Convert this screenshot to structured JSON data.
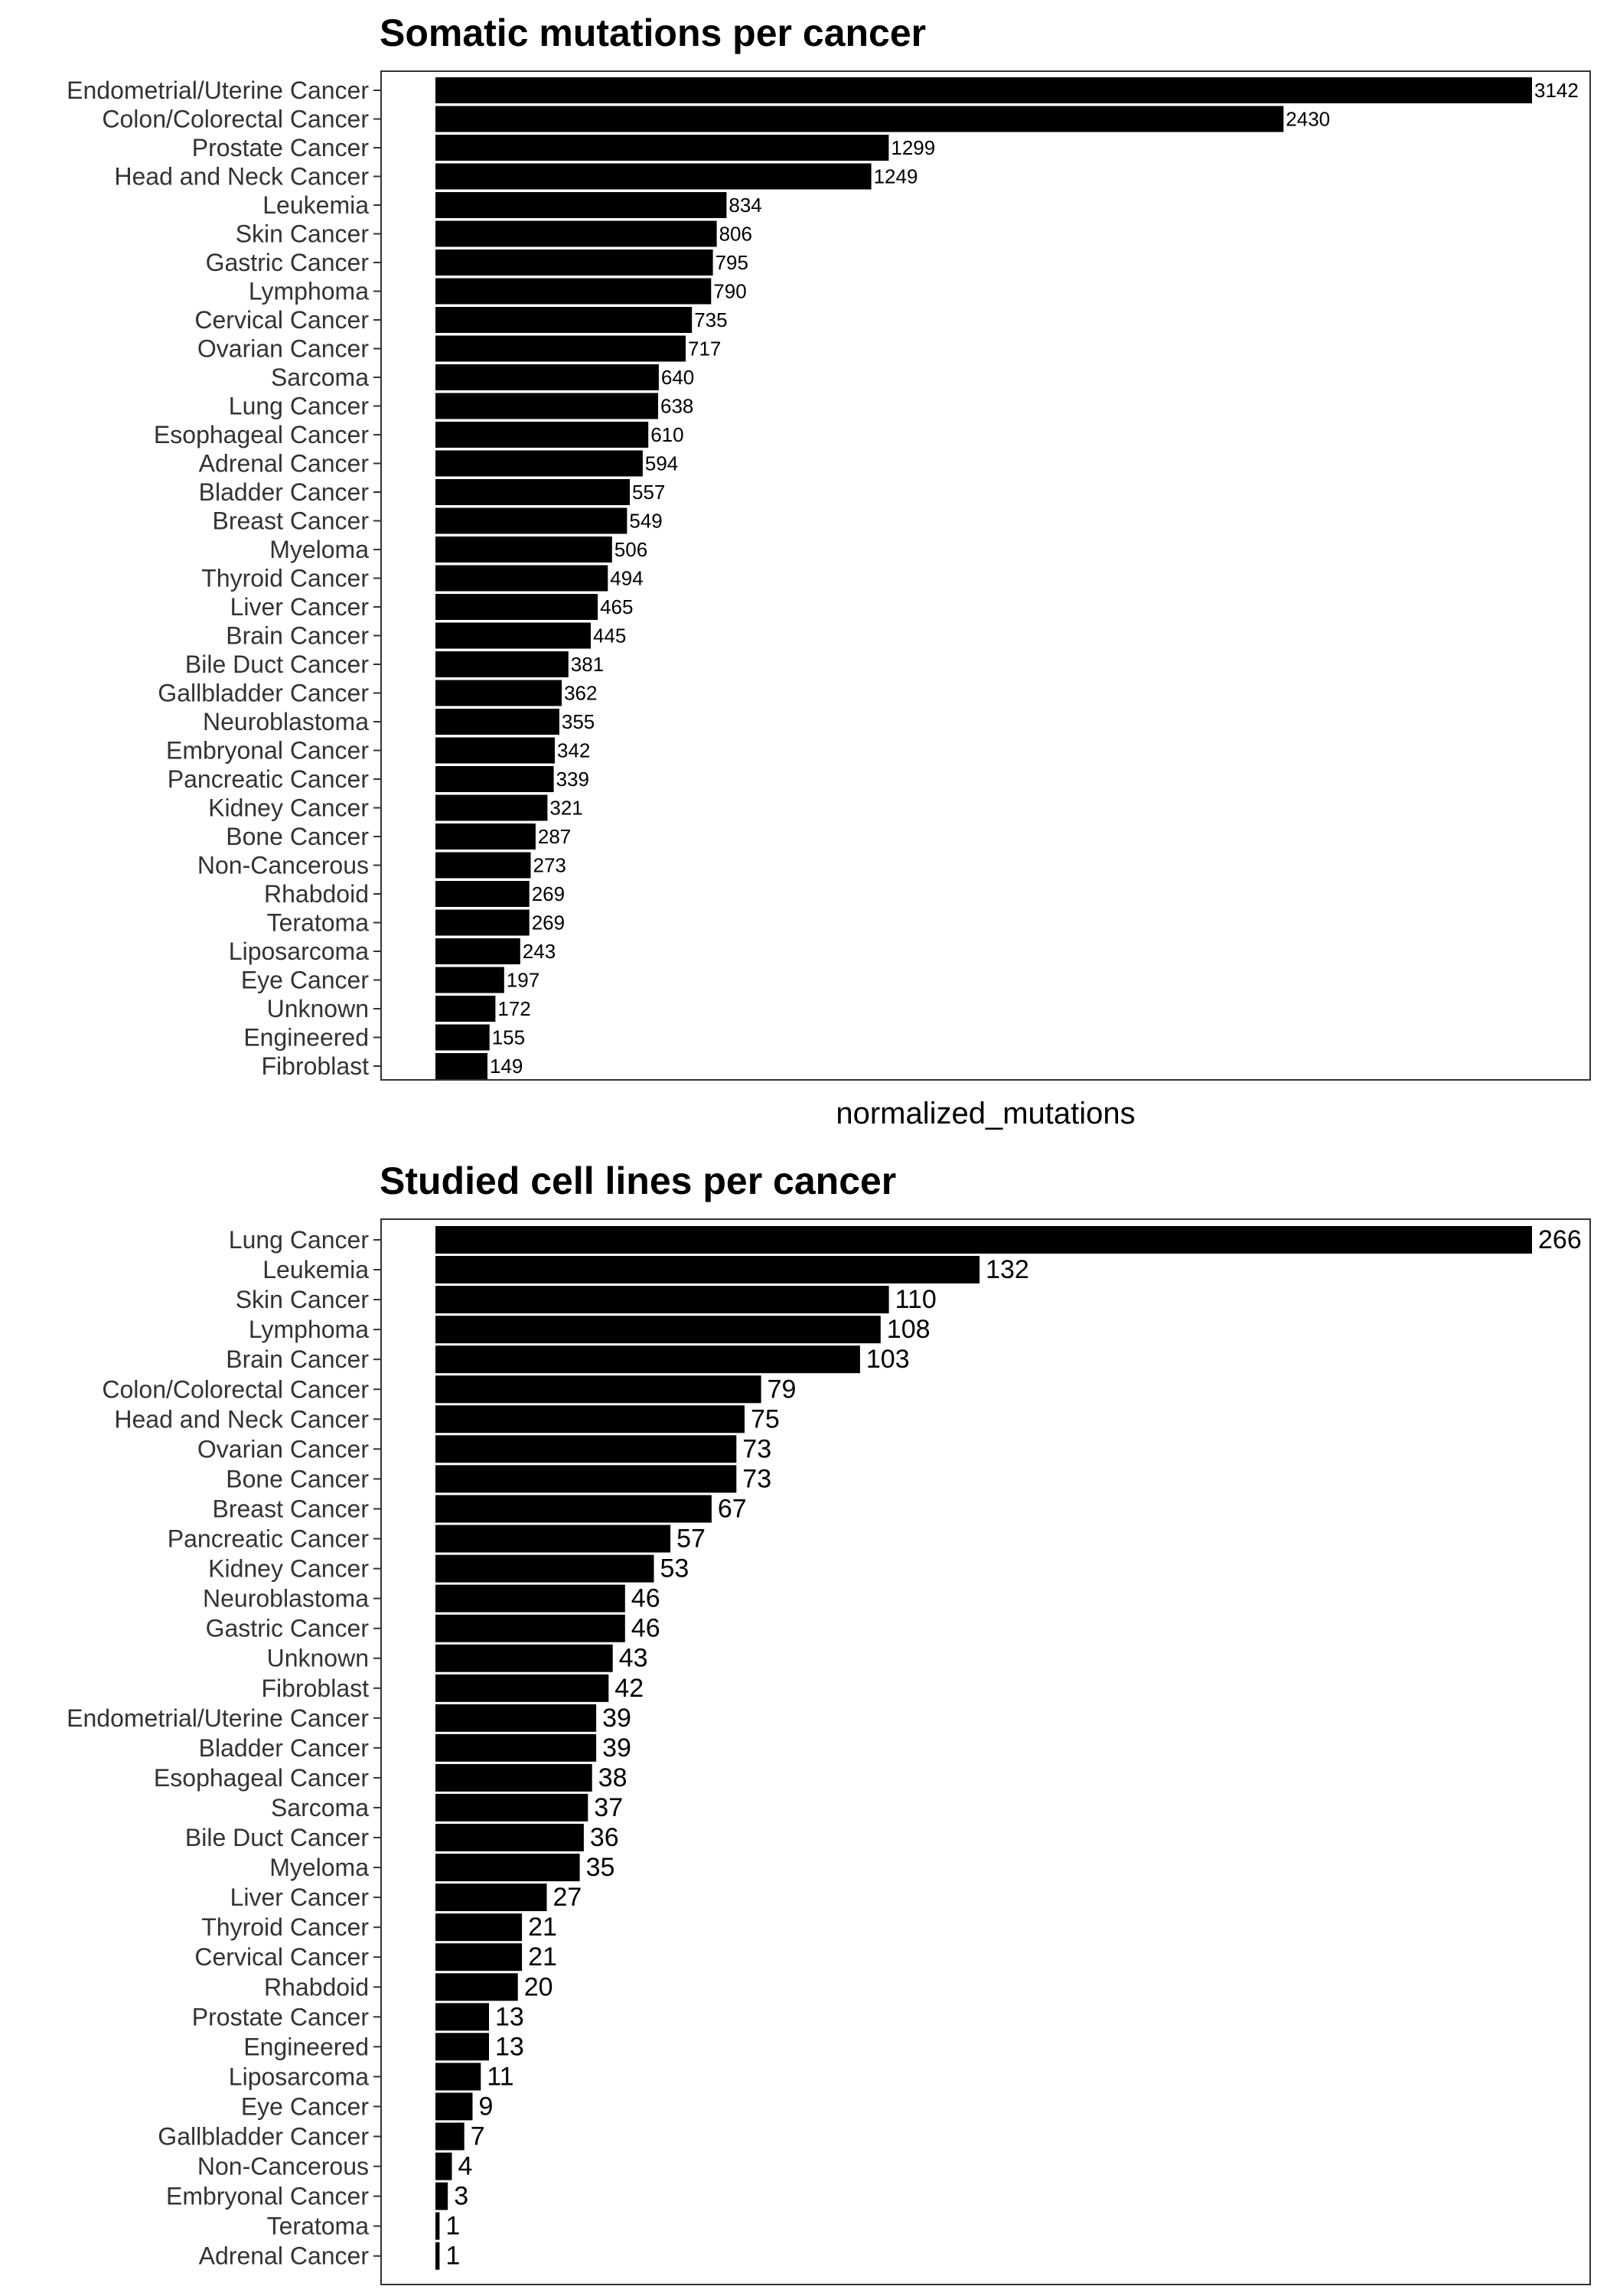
{
  "chart_data": [
    {
      "type": "bar",
      "orientation": "horizontal",
      "title": "Somatic mutations per cancer",
      "xlabel": "normalized_mutations",
      "ylabel": "",
      "grid": false,
      "data_labels": true,
      "xlim": [
        0,
        3142
      ],
      "bar_color": "#000000",
      "categories": [
        "Endometrial/Uterine Cancer",
        "Colon/Colorectal Cancer",
        "Prostate Cancer",
        "Head and Neck Cancer",
        "Leukemia",
        "Skin Cancer",
        "Gastric Cancer",
        "Lymphoma",
        "Cervical Cancer",
        "Ovarian Cancer",
        "Sarcoma",
        "Lung Cancer",
        "Esophageal Cancer",
        "Adrenal Cancer",
        "Bladder Cancer",
        "Breast Cancer",
        "Myeloma",
        "Thyroid Cancer",
        "Liver Cancer",
        "Brain Cancer",
        "Bile Duct Cancer",
        "Gallbladder Cancer",
        "Neuroblastoma",
        "Embryonal Cancer",
        "Pancreatic Cancer",
        "Kidney Cancer",
        "Bone Cancer",
        "Non-Cancerous",
        "Rhabdoid",
        "Teratoma",
        "Liposarcoma",
        "Eye Cancer",
        "Unknown",
        "Engineered",
        "Fibroblast"
      ],
      "values": [
        3142,
        2430,
        1299,
        1249,
        834,
        806,
        795,
        790,
        735,
        717,
        640,
        638,
        610,
        594,
        557,
        549,
        506,
        494,
        465,
        445,
        381,
        362,
        355,
        342,
        339,
        321,
        287,
        273,
        269,
        269,
        243,
        197,
        172,
        155,
        149
      ]
    },
    {
      "type": "bar",
      "orientation": "horizontal",
      "title": "Studied cell lines per cancer",
      "xlabel": "",
      "ylabel": "",
      "grid": false,
      "data_labels": true,
      "xlim": [
        0,
        266
      ],
      "bar_color": "#000000",
      "categories": [
        "Lung Cancer",
        "Leukemia",
        "Skin Cancer",
        "Lymphoma",
        "Brain Cancer",
        "Colon/Colorectal Cancer",
        "Head and Neck Cancer",
        "Ovarian Cancer",
        "Bone Cancer",
        "Breast Cancer",
        "Pancreatic Cancer",
        "Kidney Cancer",
        "Neuroblastoma",
        "Gastric Cancer",
        "Unknown",
        "Fibroblast",
        "Endometrial/Uterine Cancer",
        "Bladder Cancer",
        "Esophageal Cancer",
        "Sarcoma",
        "Bile Duct Cancer",
        "Myeloma",
        "Liver Cancer",
        "Thyroid Cancer",
        "Cervical Cancer",
        "Rhabdoid",
        "Prostate Cancer",
        "Engineered",
        "Liposarcoma",
        "Eye Cancer",
        "Gallbladder Cancer",
        "Non-Cancerous",
        "Embryonal Cancer",
        "Teratoma",
        "Adrenal Cancer"
      ],
      "values": [
        266,
        132,
        110,
        108,
        103,
        79,
        75,
        73,
        73,
        67,
        57,
        53,
        46,
        46,
        43,
        42,
        39,
        39,
        38,
        37,
        36,
        35,
        27,
        21,
        21,
        20,
        13,
        13,
        11,
        9,
        7,
        4,
        3,
        1,
        1
      ]
    }
  ]
}
